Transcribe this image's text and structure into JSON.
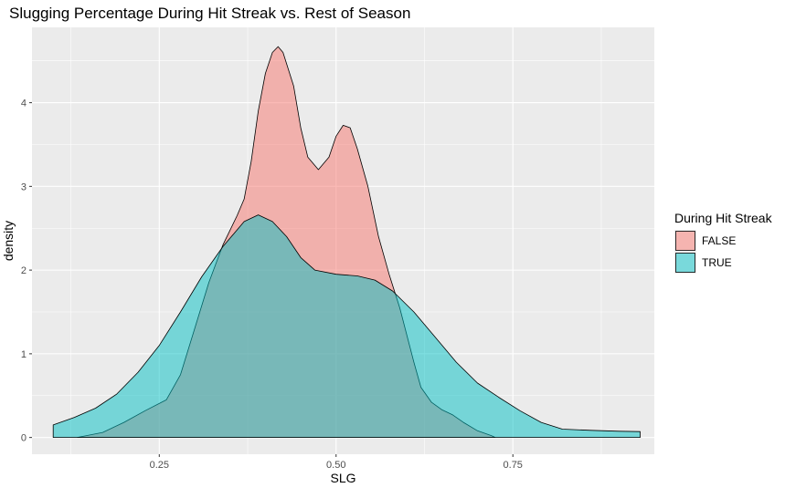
{
  "chart_data": {
    "type": "area",
    "title": "Slugging Percentage During Hit Streak vs. Rest of Season",
    "xlabel": "SLG",
    "ylabel": "density",
    "xlim": [
      0.07,
      0.95
    ],
    "ylim": [
      -0.2,
      4.9
    ],
    "x_ticks": [
      0.25,
      0.5,
      0.75
    ],
    "x_tick_labels": [
      "0.25",
      "0.50",
      "0.75"
    ],
    "y_ticks": [
      0,
      1,
      2,
      3,
      4
    ],
    "y_tick_labels": [
      "0",
      "1",
      "2",
      "3",
      "4"
    ],
    "grid": true,
    "legend": {
      "title": "During Hit Streak",
      "position": "right",
      "entries": [
        {
          "label": "FALSE",
          "color": "#F8766D"
        },
        {
          "label": "TRUE",
          "color": "#00BFC4"
        }
      ]
    },
    "series": [
      {
        "name": "FALSE",
        "color": "#F8766D",
        "points": [
          [
            0.134,
            0.0
          ],
          [
            0.17,
            0.06
          ],
          [
            0.2,
            0.18
          ],
          [
            0.23,
            0.32
          ],
          [
            0.26,
            0.45
          ],
          [
            0.28,
            0.75
          ],
          [
            0.3,
            1.3
          ],
          [
            0.32,
            1.85
          ],
          [
            0.34,
            2.3
          ],
          [
            0.36,
            2.65
          ],
          [
            0.37,
            2.85
          ],
          [
            0.38,
            3.3
          ],
          [
            0.39,
            3.9
          ],
          [
            0.4,
            4.35
          ],
          [
            0.41,
            4.6
          ],
          [
            0.418,
            4.67
          ],
          [
            0.425,
            4.6
          ],
          [
            0.44,
            4.2
          ],
          [
            0.45,
            3.7
          ],
          [
            0.46,
            3.35
          ],
          [
            0.475,
            3.2
          ],
          [
            0.49,
            3.35
          ],
          [
            0.5,
            3.6
          ],
          [
            0.51,
            3.73
          ],
          [
            0.52,
            3.7
          ],
          [
            0.53,
            3.45
          ],
          [
            0.545,
            3.0
          ],
          [
            0.56,
            2.4
          ],
          [
            0.575,
            1.95
          ],
          [
            0.59,
            1.55
          ],
          [
            0.61,
            0.9
          ],
          [
            0.62,
            0.6
          ],
          [
            0.635,
            0.42
          ],
          [
            0.65,
            0.33
          ],
          [
            0.665,
            0.27
          ],
          [
            0.68,
            0.18
          ],
          [
            0.7,
            0.08
          ],
          [
            0.72,
            0.02
          ],
          [
            0.725,
            0.0
          ]
        ]
      },
      {
        "name": "TRUE",
        "color": "#00BFC4",
        "points": [
          [
            0.1,
            0.15
          ],
          [
            0.13,
            0.24
          ],
          [
            0.16,
            0.35
          ],
          [
            0.19,
            0.52
          ],
          [
            0.22,
            0.78
          ],
          [
            0.25,
            1.1
          ],
          [
            0.28,
            1.5
          ],
          [
            0.31,
            1.92
          ],
          [
            0.34,
            2.28
          ],
          [
            0.37,
            2.58
          ],
          [
            0.39,
            2.66
          ],
          [
            0.41,
            2.58
          ],
          [
            0.43,
            2.4
          ],
          [
            0.45,
            2.15
          ],
          [
            0.47,
            2.0
          ],
          [
            0.5,
            1.95
          ],
          [
            0.53,
            1.93
          ],
          [
            0.555,
            1.88
          ],
          [
            0.58,
            1.75
          ],
          [
            0.61,
            1.5
          ],
          [
            0.64,
            1.2
          ],
          [
            0.67,
            0.9
          ],
          [
            0.7,
            0.65
          ],
          [
            0.73,
            0.48
          ],
          [
            0.76,
            0.32
          ],
          [
            0.79,
            0.18
          ],
          [
            0.82,
            0.1
          ],
          [
            0.86,
            0.085
          ],
          [
            0.9,
            0.075
          ],
          [
            0.93,
            0.07
          ]
        ]
      }
    ]
  }
}
